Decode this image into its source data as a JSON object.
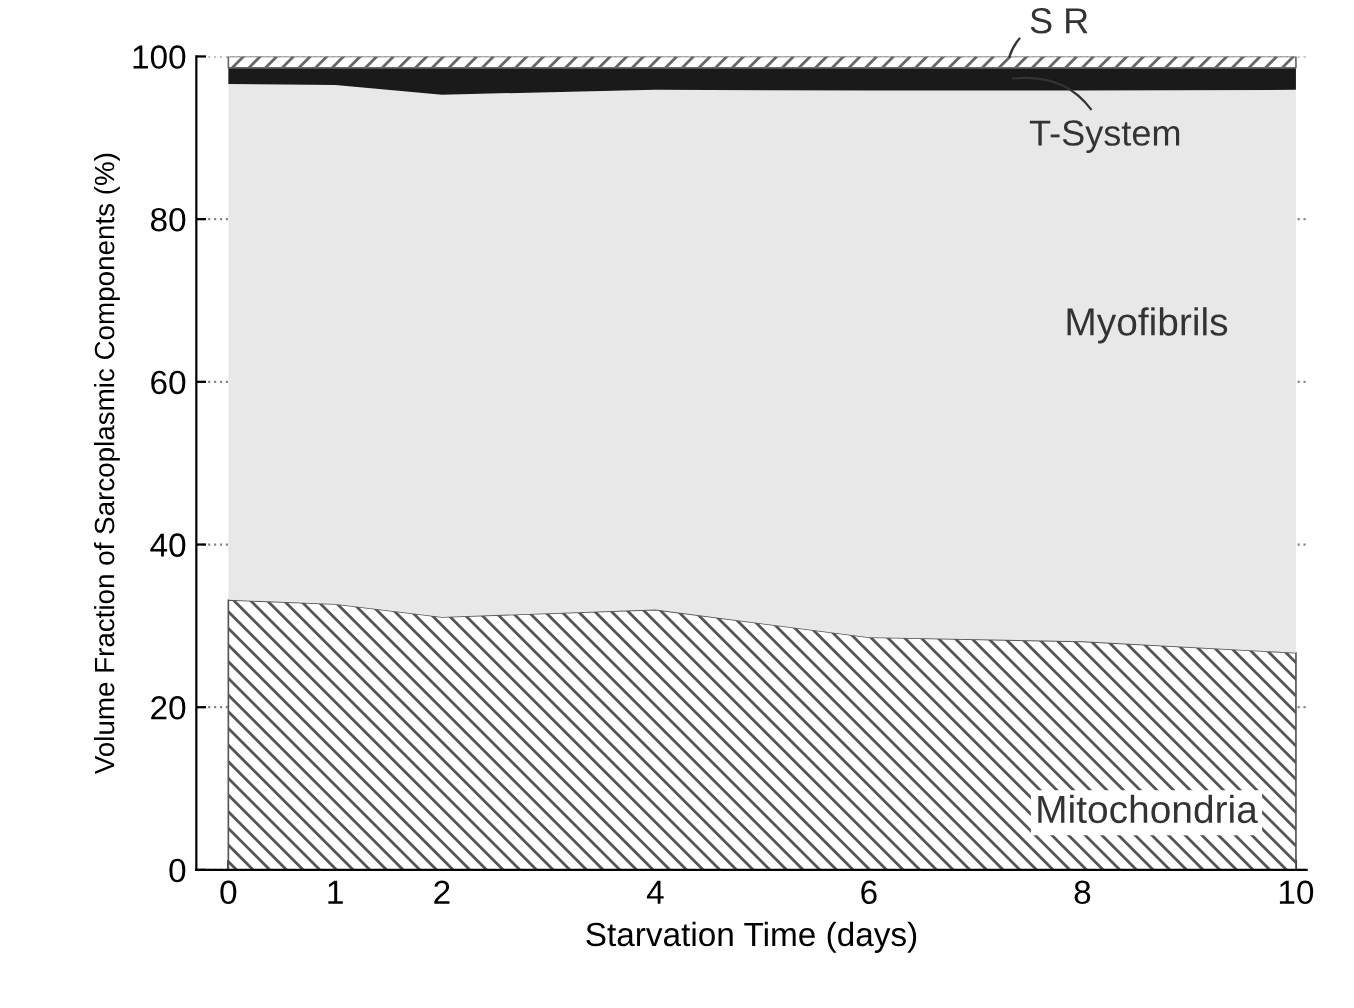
{
  "chart_data": {
    "type": "area",
    "stacked": true,
    "xlabel": "Starvation Time (days)",
    "ylabel": "Volume Fraction of Sarcoplasmic Components (%)",
    "x": [
      0,
      1,
      2,
      4,
      6,
      8,
      10
    ],
    "series": [
      {
        "name": "Mitochondria",
        "color": "#555555",
        "values": [
          33.2,
          32.7,
          31.1,
          32.0,
          28.6,
          28.1,
          26.7
        ]
      },
      {
        "name": "Myofibrils",
        "color": "#e8e8e8",
        "values": [
          63.4,
          63.8,
          64.2,
          63.9,
          67.2,
          67.7,
          69.2
        ]
      },
      {
        "name": "T-System",
        "color": "#1a1a1a",
        "values": [
          2.0,
          2.1,
          3.3,
          2.7,
          2.8,
          2.8,
          2.7
        ]
      },
      {
        "name": "S R",
        "color": "#666666",
        "values": [
          1.4,
          1.4,
          1.4,
          1.4,
          1.4,
          1.4,
          1.4
        ]
      }
    ],
    "xlim": [
      -0.3,
      10.1
    ],
    "ylim": [
      0,
      100
    ],
    "xticks": [
      0,
      1,
      2,
      4,
      6,
      8,
      10
    ],
    "yticks": [
      0,
      20,
      40,
      60,
      80,
      100
    ],
    "grid": "y",
    "legend": false
  }
}
